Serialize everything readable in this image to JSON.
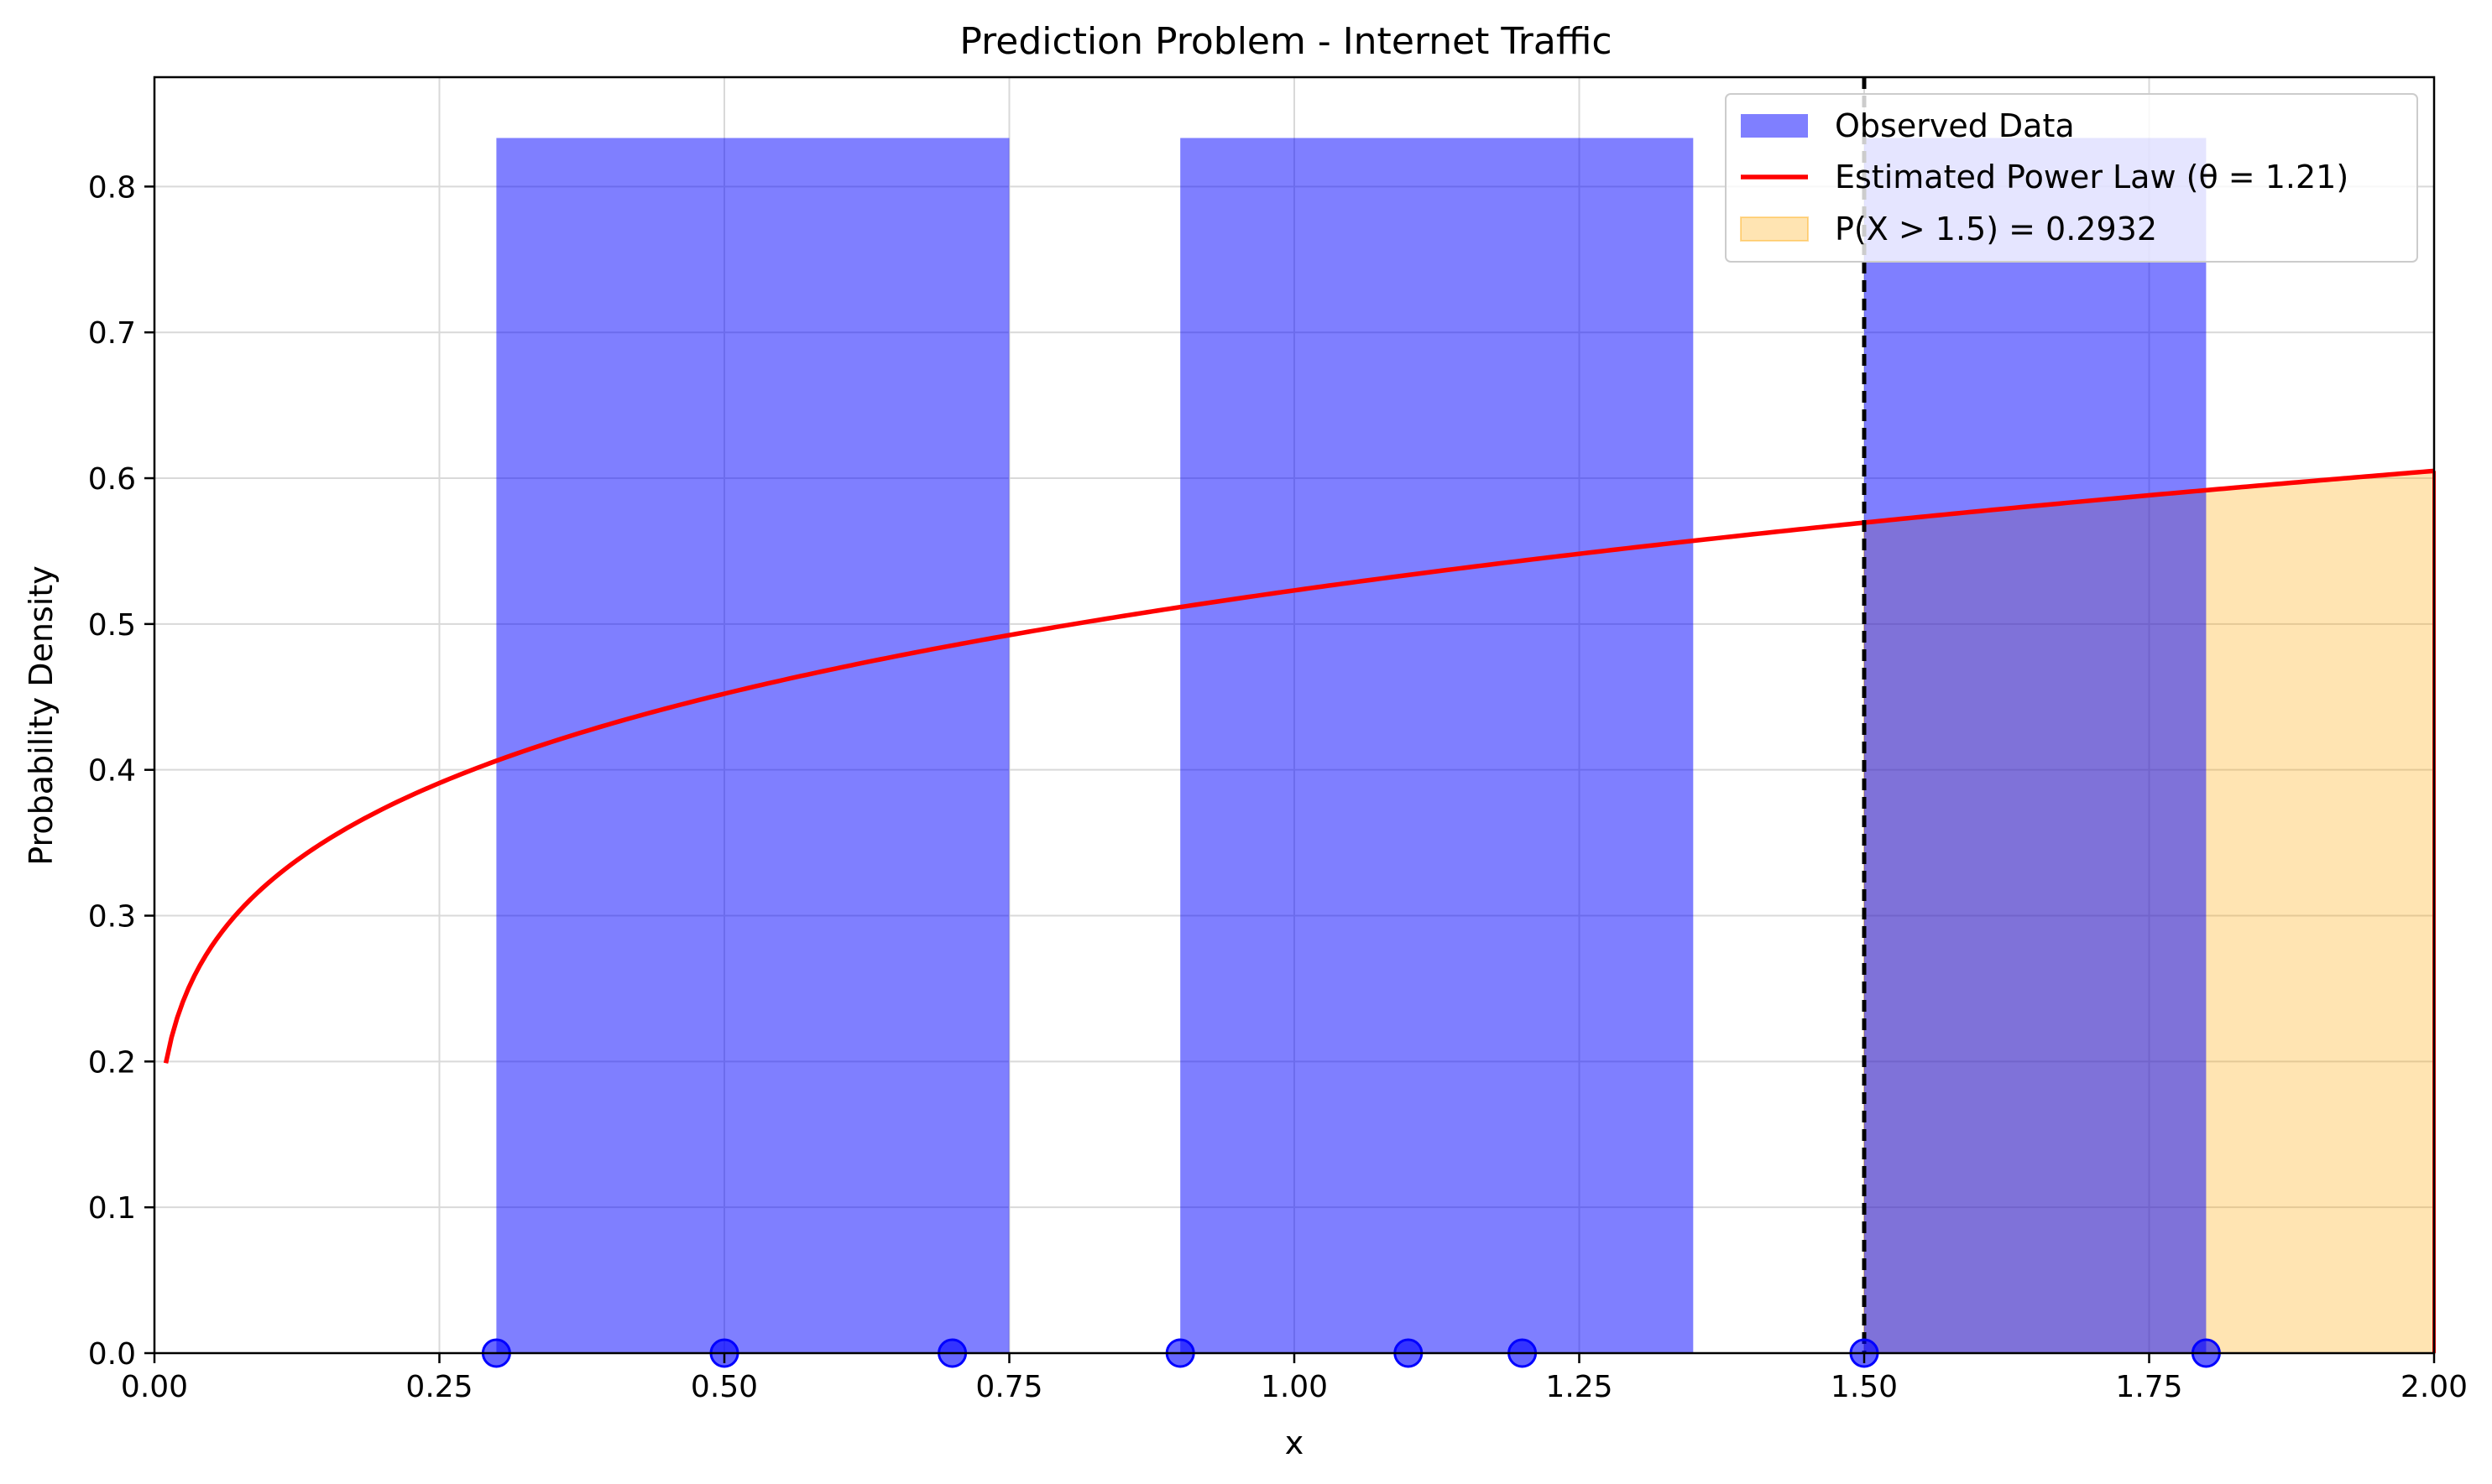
{
  "chart_data": {
    "type": "bar",
    "title": "Prediction Problem - Internet Traffic",
    "xlabel": "x",
    "ylabel": "Probability Density",
    "xlim": [
      0,
      2
    ],
    "ylim": [
      0,
      0.875
    ],
    "grid": true,
    "legend_position": "top-right",
    "x_ticks": [
      0.0,
      0.25,
      0.5,
      0.75,
      1.0,
      1.25,
      1.5,
      1.75,
      2.0
    ],
    "x_tick_labels": [
      "0.00",
      "0.25",
      "0.50",
      "0.75",
      "1.00",
      "1.25",
      "1.50",
      "1.75",
      "2.00"
    ],
    "y_ticks": [
      0.0,
      0.1,
      0.2,
      0.3,
      0.4,
      0.5,
      0.6,
      0.7,
      0.8
    ],
    "y_tick_labels": [
      "0.0",
      "0.1",
      "0.2",
      "0.3",
      "0.4",
      "0.5",
      "0.6",
      "0.7",
      "0.8"
    ],
    "histogram": {
      "name": "Observed Data",
      "color": "#8080ff",
      "bins": [
        {
          "x0": 0.3,
          "x1": 0.75,
          "density": 0.8333
        },
        {
          "x0": 0.9,
          "x1": 1.35,
          "density": 0.8333
        },
        {
          "x0": 1.5,
          "x1": 1.8,
          "density": 0.8333
        }
      ]
    },
    "observations": {
      "color": "#0000ff",
      "x": [
        0.3,
        0.5,
        0.7,
        0.9,
        1.1,
        1.2,
        1.5,
        1.8
      ]
    },
    "power_law": {
      "name": "Estimated Power Law (θ = 1.21)",
      "theta": 1.21,
      "x_start": 0.01,
      "x_end": 2.0,
      "color": "#ff0000"
    },
    "tail_region": {
      "name": "P(X > 1.5) = 0.2932",
      "x_from": 1.5,
      "x_to": 2.0,
      "color": "#ffa500"
    },
    "threshold_line": {
      "x": 1.5,
      "color": "#000000",
      "style": "dashed"
    }
  }
}
